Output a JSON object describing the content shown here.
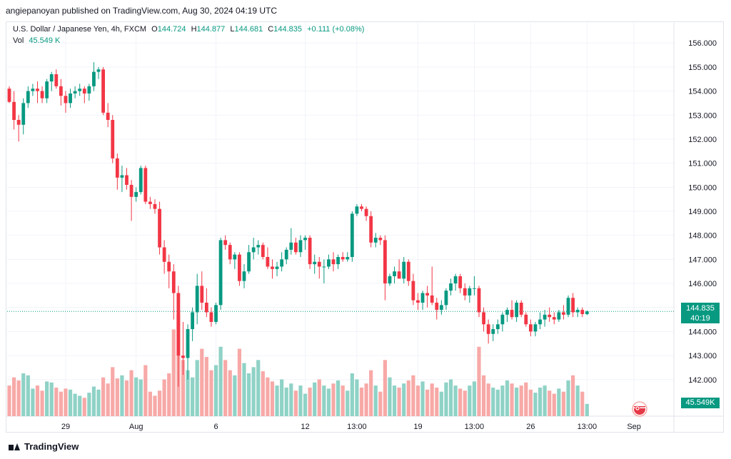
{
  "header": {
    "published_by": "angiepanoyan published on TradingView.com, Aug 30, 2024 04:19 UTC"
  },
  "legend": {
    "symbol": "U.S. Dollar / Japanese Yen, 4h, FXCM",
    "open_label": "O",
    "open": "144.724",
    "high_label": "H",
    "high": "144.877",
    "low_label": "L",
    "low": "144.681",
    "close_label": "C",
    "close": "144.835",
    "change": "+0.111 (+0.08%)",
    "vol_label": "Vol",
    "vol_value": "45.549 K"
  },
  "price_tag": {
    "price": "144.835",
    "countdown": "40:19"
  },
  "volume_tag": "45.549K",
  "footer": {
    "brand": "TradingView"
  },
  "icons": {
    "flag": "us-japan-flag-icon",
    "logo": "tradingview-logo-icon"
  },
  "colors": {
    "up": "#089981",
    "down": "#f23645",
    "up_vol": "#8fd2c6",
    "down_vol": "#f7a9a7",
    "grid": "#f0f3fa",
    "last_line": "#089981"
  },
  "chart_data": {
    "type": "candlestick",
    "timeframe": "4h",
    "ylim": [
      141.4,
      156.6
    ],
    "y_ticks": [
      "156.000",
      "155.000",
      "154.000",
      "153.000",
      "152.000",
      "151.000",
      "150.000",
      "149.000",
      "148.000",
      "147.000",
      "146.000",
      "145.000",
      "144.000",
      "143.000",
      "142.000"
    ],
    "x_ticks": [
      {
        "label": "29",
        "index": 12
      },
      {
        "label": "Aug",
        "index": 27
      },
      {
        "label": "6",
        "index": 44
      },
      {
        "label": "12",
        "index": 63
      },
      {
        "label": "13:00",
        "index": 74
      },
      {
        "label": "19",
        "index": 87
      },
      {
        "label": "13:00",
        "index": 99
      },
      {
        "label": "26",
        "index": 111
      },
      {
        "label": "13:00",
        "index": 123
      },
      {
        "label": "Sep",
        "index": 133
      }
    ],
    "last_price": 144.835,
    "candles": [
      {
        "o": 154.1,
        "h": 154.2,
        "l": 153.5,
        "c": 153.55,
        "v": 0.3
      },
      {
        "o": 153.55,
        "h": 154.0,
        "l": 152.4,
        "c": 152.8,
        "v": 0.38
      },
      {
        "o": 152.8,
        "h": 153.0,
        "l": 151.9,
        "c": 152.6,
        "v": 0.35
      },
      {
        "o": 152.6,
        "h": 153.7,
        "l": 152.2,
        "c": 153.5,
        "v": 0.42
      },
      {
        "o": 153.5,
        "h": 154.2,
        "l": 153.3,
        "c": 154.0,
        "v": 0.4
      },
      {
        "o": 154.0,
        "h": 154.3,
        "l": 153.8,
        "c": 154.1,
        "v": 0.27
      },
      {
        "o": 154.1,
        "h": 154.4,
        "l": 153.5,
        "c": 154.0,
        "v": 0.3
      },
      {
        "o": 154.0,
        "h": 154.2,
        "l": 153.5,
        "c": 153.7,
        "v": 0.25
      },
      {
        "o": 153.7,
        "h": 154.5,
        "l": 153.5,
        "c": 154.4,
        "v": 0.34
      },
      {
        "o": 154.4,
        "h": 154.8,
        "l": 154.0,
        "c": 154.7,
        "v": 0.33
      },
      {
        "o": 154.7,
        "h": 154.9,
        "l": 154.1,
        "c": 154.2,
        "v": 0.28
      },
      {
        "o": 154.2,
        "h": 154.5,
        "l": 153.4,
        "c": 153.8,
        "v": 0.24
      },
      {
        "o": 153.8,
        "h": 154.0,
        "l": 153.1,
        "c": 153.5,
        "v": 0.27
      },
      {
        "o": 153.5,
        "h": 154.1,
        "l": 153.3,
        "c": 153.9,
        "v": 0.26
      },
      {
        "o": 153.9,
        "h": 154.2,
        "l": 153.7,
        "c": 154.0,
        "v": 0.22
      },
      {
        "o": 154.0,
        "h": 154.3,
        "l": 153.8,
        "c": 154.1,
        "v": 0.2
      },
      {
        "o": 154.1,
        "h": 154.2,
        "l": 153.5,
        "c": 153.9,
        "v": 0.18
      },
      {
        "o": 153.9,
        "h": 154.3,
        "l": 153.6,
        "c": 154.2,
        "v": 0.23
      },
      {
        "o": 154.2,
        "h": 155.2,
        "l": 154.0,
        "c": 154.8,
        "v": 0.29
      },
      {
        "o": 154.8,
        "h": 155.0,
        "l": 154.5,
        "c": 154.9,
        "v": 0.26
      },
      {
        "o": 154.9,
        "h": 155.0,
        "l": 153.0,
        "c": 153.1,
        "v": 0.38
      },
      {
        "o": 153.1,
        "h": 153.5,
        "l": 152.5,
        "c": 152.8,
        "v": 0.32
      },
      {
        "o": 152.8,
        "h": 153.0,
        "l": 151.0,
        "c": 151.2,
        "v": 0.48
      },
      {
        "o": 151.2,
        "h": 151.4,
        "l": 149.9,
        "c": 150.4,
        "v": 0.37
      },
      {
        "o": 150.4,
        "h": 150.9,
        "l": 149.8,
        "c": 150.5,
        "v": 0.4
      },
      {
        "o": 150.5,
        "h": 150.8,
        "l": 149.9,
        "c": 150.1,
        "v": 0.35
      },
      {
        "o": 150.1,
        "h": 150.3,
        "l": 148.6,
        "c": 149.6,
        "v": 0.45
      },
      {
        "o": 149.6,
        "h": 150.0,
        "l": 149.4,
        "c": 149.8,
        "v": 0.38
      },
      {
        "o": 149.8,
        "h": 150.9,
        "l": 149.7,
        "c": 150.8,
        "v": 0.36
      },
      {
        "o": 150.8,
        "h": 150.9,
        "l": 149.3,
        "c": 149.4,
        "v": 0.5
      },
      {
        "o": 149.4,
        "h": 149.6,
        "l": 149.1,
        "c": 149.3,
        "v": 0.24
      },
      {
        "o": 149.3,
        "h": 149.5,
        "l": 148.9,
        "c": 149.1,
        "v": 0.2
      },
      {
        "o": 149.1,
        "h": 149.4,
        "l": 147.2,
        "c": 147.5,
        "v": 0.25
      },
      {
        "o": 147.5,
        "h": 147.8,
        "l": 146.4,
        "c": 146.9,
        "v": 0.36
      },
      {
        "o": 146.9,
        "h": 147.2,
        "l": 145.8,
        "c": 146.5,
        "v": 0.42
      },
      {
        "o": 146.5,
        "h": 146.8,
        "l": 144.5,
        "c": 145.6,
        "v": 0.85
      },
      {
        "o": 145.6,
        "h": 145.9,
        "l": 141.7,
        "c": 143.0,
        "v": 1.0
      },
      {
        "o": 143.0,
        "h": 144.4,
        "l": 142.2,
        "c": 142.9,
        "v": 0.55
      },
      {
        "o": 142.9,
        "h": 144.3,
        "l": 142.0,
        "c": 144.1,
        "v": 0.45
      },
      {
        "o": 144.1,
        "h": 145.0,
        "l": 143.6,
        "c": 144.8,
        "v": 0.38
      },
      {
        "o": 144.8,
        "h": 146.4,
        "l": 144.3,
        "c": 145.9,
        "v": 0.55
      },
      {
        "o": 145.9,
        "h": 146.5,
        "l": 144.9,
        "c": 145.2,
        "v": 0.66
      },
      {
        "o": 145.2,
        "h": 145.8,
        "l": 144.6,
        "c": 144.8,
        "v": 0.58
      },
      {
        "o": 144.8,
        "h": 145.0,
        "l": 144.2,
        "c": 144.4,
        "v": 0.45
      },
      {
        "o": 144.4,
        "h": 145.2,
        "l": 144.3,
        "c": 145.1,
        "v": 0.5
      },
      {
        "o": 145.1,
        "h": 147.9,
        "l": 144.9,
        "c": 147.8,
        "v": 0.68
      },
      {
        "o": 147.8,
        "h": 148.0,
        "l": 147.4,
        "c": 147.6,
        "v": 0.55
      },
      {
        "o": 147.6,
        "h": 147.7,
        "l": 146.8,
        "c": 147.0,
        "v": 0.45
      },
      {
        "o": 147.0,
        "h": 147.3,
        "l": 146.6,
        "c": 147.2,
        "v": 0.4
      },
      {
        "o": 147.2,
        "h": 147.3,
        "l": 145.9,
        "c": 146.1,
        "v": 0.66
      },
      {
        "o": 146.1,
        "h": 146.8,
        "l": 145.8,
        "c": 146.5,
        "v": 0.52
      },
      {
        "o": 146.5,
        "h": 147.6,
        "l": 146.4,
        "c": 147.3,
        "v": 0.42
      },
      {
        "o": 147.3,
        "h": 147.9,
        "l": 147.0,
        "c": 147.5,
        "v": 0.48
      },
      {
        "o": 147.5,
        "h": 147.8,
        "l": 147.2,
        "c": 147.6,
        "v": 0.55
      },
      {
        "o": 147.6,
        "h": 147.7,
        "l": 147.0,
        "c": 147.1,
        "v": 0.44
      },
      {
        "o": 147.1,
        "h": 147.5,
        "l": 146.6,
        "c": 146.7,
        "v": 0.38
      },
      {
        "o": 146.7,
        "h": 147.0,
        "l": 146.2,
        "c": 146.6,
        "v": 0.34
      },
      {
        "o": 146.6,
        "h": 146.9,
        "l": 146.3,
        "c": 146.7,
        "v": 0.3
      },
      {
        "o": 146.7,
        "h": 147.3,
        "l": 146.5,
        "c": 147.0,
        "v": 0.36
      },
      {
        "o": 147.0,
        "h": 147.5,
        "l": 146.8,
        "c": 147.4,
        "v": 0.28
      },
      {
        "o": 147.4,
        "h": 148.3,
        "l": 147.2,
        "c": 147.7,
        "v": 0.32
      },
      {
        "o": 147.7,
        "h": 147.9,
        "l": 147.2,
        "c": 147.3,
        "v": 0.25
      },
      {
        "o": 147.3,
        "h": 148.0,
        "l": 147.1,
        "c": 147.8,
        "v": 0.3
      },
      {
        "o": 147.8,
        "h": 148.0,
        "l": 147.4,
        "c": 147.9,
        "v": 0.22
      },
      {
        "o": 147.9,
        "h": 148.0,
        "l": 146.6,
        "c": 146.8,
        "v": 0.28
      },
      {
        "o": 146.8,
        "h": 147.2,
        "l": 146.4,
        "c": 146.9,
        "v": 0.33
      },
      {
        "o": 146.9,
        "h": 147.1,
        "l": 146.2,
        "c": 146.7,
        "v": 0.36
      },
      {
        "o": 146.7,
        "h": 147.0,
        "l": 146.0,
        "c": 146.7,
        "v": 0.3
      },
      {
        "o": 146.7,
        "h": 147.2,
        "l": 146.6,
        "c": 147.0,
        "v": 0.27
      },
      {
        "o": 147.0,
        "h": 147.3,
        "l": 146.5,
        "c": 146.8,
        "v": 0.32
      },
      {
        "o": 146.8,
        "h": 147.2,
        "l": 146.6,
        "c": 147.1,
        "v": 0.35
      },
      {
        "o": 147.1,
        "h": 147.3,
        "l": 146.9,
        "c": 147.0,
        "v": 0.3
      },
      {
        "o": 147.0,
        "h": 147.3,
        "l": 146.9,
        "c": 147.1,
        "v": 0.25
      },
      {
        "o": 147.1,
        "h": 149.0,
        "l": 146.9,
        "c": 148.9,
        "v": 0.42
      },
      {
        "o": 148.9,
        "h": 149.3,
        "l": 148.8,
        "c": 149.2,
        "v": 0.36
      },
      {
        "o": 149.2,
        "h": 149.3,
        "l": 149.0,
        "c": 149.1,
        "v": 0.28
      },
      {
        "o": 149.1,
        "h": 149.2,
        "l": 148.6,
        "c": 148.8,
        "v": 0.32
      },
      {
        "o": 148.8,
        "h": 149.0,
        "l": 147.5,
        "c": 147.7,
        "v": 0.45
      },
      {
        "o": 147.7,
        "h": 148.1,
        "l": 147.5,
        "c": 147.9,
        "v": 0.3
      },
      {
        "o": 147.9,
        "h": 148.0,
        "l": 147.6,
        "c": 147.8,
        "v": 0.24
      },
      {
        "o": 147.8,
        "h": 148.0,
        "l": 145.3,
        "c": 146.0,
        "v": 0.55
      },
      {
        "o": 146.0,
        "h": 146.4,
        "l": 145.9,
        "c": 146.3,
        "v": 0.38
      },
      {
        "o": 146.3,
        "h": 146.7,
        "l": 146.0,
        "c": 146.5,
        "v": 0.3
      },
      {
        "o": 146.5,
        "h": 147.0,
        "l": 146.2,
        "c": 146.2,
        "v": 0.28
      },
      {
        "o": 146.2,
        "h": 147.1,
        "l": 146.0,
        "c": 146.9,
        "v": 0.32
      },
      {
        "o": 146.9,
        "h": 147.0,
        "l": 145.9,
        "c": 146.1,
        "v": 0.35
      },
      {
        "o": 146.1,
        "h": 146.4,
        "l": 145.1,
        "c": 145.3,
        "v": 0.4
      },
      {
        "o": 145.3,
        "h": 145.6,
        "l": 144.9,
        "c": 145.2,
        "v": 0.3
      },
      {
        "o": 145.2,
        "h": 145.7,
        "l": 144.9,
        "c": 145.6,
        "v": 0.34
      },
      {
        "o": 145.6,
        "h": 145.9,
        "l": 145.0,
        "c": 145.5,
        "v": 0.26
      },
      {
        "o": 145.5,
        "h": 146.7,
        "l": 145.1,
        "c": 145.2,
        "v": 0.32
      },
      {
        "o": 145.2,
        "h": 145.4,
        "l": 144.5,
        "c": 144.9,
        "v": 0.28
      },
      {
        "o": 144.9,
        "h": 145.3,
        "l": 144.7,
        "c": 145.1,
        "v": 0.24
      },
      {
        "o": 145.1,
        "h": 145.8,
        "l": 144.9,
        "c": 145.7,
        "v": 0.33
      },
      {
        "o": 145.7,
        "h": 146.2,
        "l": 145.5,
        "c": 146.0,
        "v": 0.36
      },
      {
        "o": 146.0,
        "h": 146.4,
        "l": 145.7,
        "c": 146.3,
        "v": 0.3
      },
      {
        "o": 146.3,
        "h": 146.4,
        "l": 145.6,
        "c": 145.8,
        "v": 0.27
      },
      {
        "o": 145.8,
        "h": 146.0,
        "l": 145.3,
        "c": 145.5,
        "v": 0.25
      },
      {
        "o": 145.5,
        "h": 145.9,
        "l": 145.2,
        "c": 145.8,
        "v": 0.3
      },
      {
        "o": 145.8,
        "h": 146.3,
        "l": 145.5,
        "c": 145.8,
        "v": 0.34
      },
      {
        "o": 145.8,
        "h": 145.9,
        "l": 144.6,
        "c": 144.8,
        "v": 0.68
      },
      {
        "o": 144.8,
        "h": 145.0,
        "l": 144.0,
        "c": 144.3,
        "v": 0.4
      },
      {
        "o": 144.3,
        "h": 144.5,
        "l": 143.5,
        "c": 143.9,
        "v": 0.32
      },
      {
        "o": 143.9,
        "h": 144.3,
        "l": 143.6,
        "c": 144.1,
        "v": 0.28
      },
      {
        "o": 144.1,
        "h": 144.5,
        "l": 143.9,
        "c": 144.3,
        "v": 0.26
      },
      {
        "o": 144.3,
        "h": 144.8,
        "l": 144.0,
        "c": 144.7,
        "v": 0.3
      },
      {
        "o": 144.7,
        "h": 145.0,
        "l": 144.4,
        "c": 144.9,
        "v": 0.35
      },
      {
        "o": 144.9,
        "h": 145.3,
        "l": 144.5,
        "c": 144.6,
        "v": 0.32
      },
      {
        "o": 144.6,
        "h": 145.3,
        "l": 144.4,
        "c": 145.2,
        "v": 0.28
      },
      {
        "o": 145.2,
        "h": 145.3,
        "l": 144.6,
        "c": 144.7,
        "v": 0.3
      },
      {
        "o": 144.7,
        "h": 144.8,
        "l": 144.2,
        "c": 144.3,
        "v": 0.33
      },
      {
        "o": 144.3,
        "h": 144.5,
        "l": 143.8,
        "c": 144.0,
        "v": 0.26
      },
      {
        "o": 144.0,
        "h": 144.4,
        "l": 143.8,
        "c": 144.3,
        "v": 0.23
      },
      {
        "o": 144.3,
        "h": 144.8,
        "l": 144.1,
        "c": 144.5,
        "v": 0.28
      },
      {
        "o": 144.5,
        "h": 144.9,
        "l": 144.2,
        "c": 144.7,
        "v": 0.3
      },
      {
        "o": 144.7,
        "h": 145.0,
        "l": 144.4,
        "c": 144.6,
        "v": 0.25
      },
      {
        "o": 144.6,
        "h": 144.8,
        "l": 144.3,
        "c": 144.5,
        "v": 0.22
      },
      {
        "o": 144.5,
        "h": 144.9,
        "l": 144.4,
        "c": 144.8,
        "v": 0.27
      },
      {
        "o": 144.8,
        "h": 145.1,
        "l": 144.5,
        "c": 144.7,
        "v": 0.24
      },
      {
        "o": 144.7,
        "h": 145.5,
        "l": 144.6,
        "c": 145.4,
        "v": 0.35
      },
      {
        "o": 145.4,
        "h": 145.6,
        "l": 144.6,
        "c": 144.8,
        "v": 0.4
      },
      {
        "o": 144.8,
        "h": 145.0,
        "l": 144.6,
        "c": 144.9,
        "v": 0.3
      },
      {
        "o": 144.9,
        "h": 145.0,
        "l": 144.6,
        "c": 144.724,
        "v": 0.24
      },
      {
        "o": 144.724,
        "h": 144.877,
        "l": 144.681,
        "c": 144.835,
        "v": 0.12
      }
    ]
  }
}
